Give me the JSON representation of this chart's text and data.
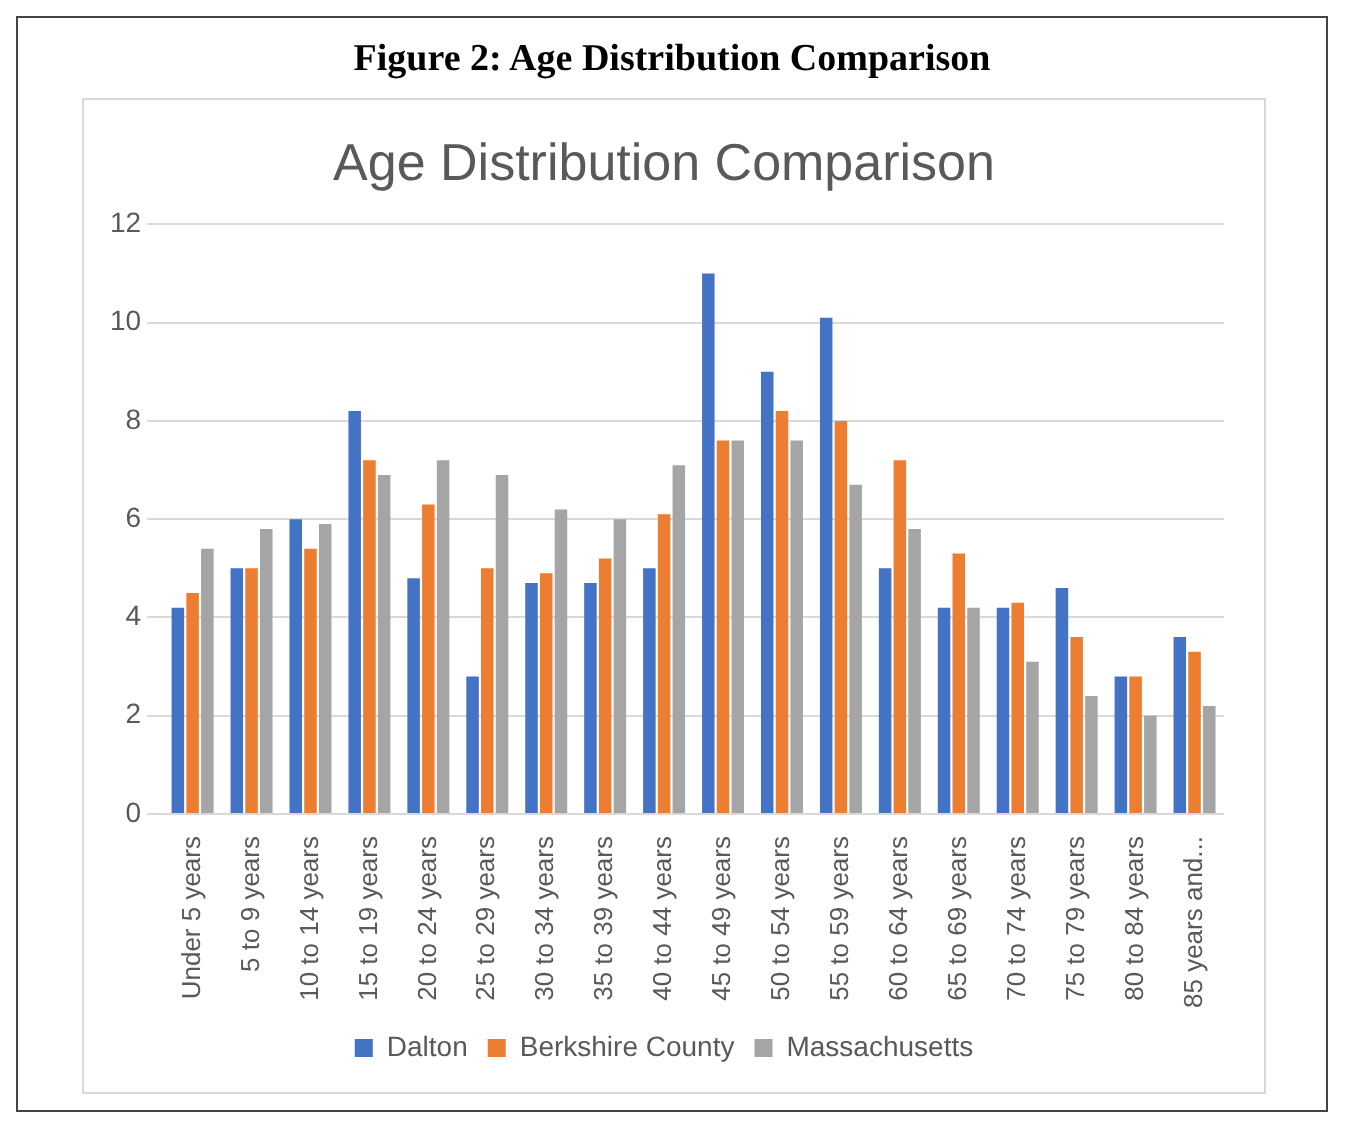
{
  "chart_data": {
    "type": "bar",
    "title": "Age Distribution Comparison",
    "annotations": [
      "Figure 2: Age Distribution Comparison"
    ],
    "categories": [
      "Under 5 years",
      "5 to 9 years",
      "10 to 14 years",
      "15 to 19 years",
      "20 to 24 years",
      "25 to 29 years",
      "30 to 34 years",
      "35 to 39 years",
      "40 to 44 years",
      "45 to 49 years",
      "50 to 54 years",
      "55 to 59 years",
      "60 to 64 years",
      "65 to 69 years",
      "70 to 74 years",
      "75 to 79 years",
      "80 to 84 years",
      "85 years and..."
    ],
    "series": [
      {
        "name": "Dalton",
        "color": "#4472c4",
        "values": [
          4.2,
          5.0,
          6.0,
          8.2,
          4.8,
          2.8,
          4.7,
          4.7,
          5.0,
          11.0,
          9.0,
          10.1,
          5.0,
          4.2,
          4.2,
          4.6,
          2.8,
          3.6
        ]
      },
      {
        "name": "Berkshire County",
        "color": "#ed7d31",
        "values": [
          4.5,
          5.0,
          5.4,
          7.2,
          6.3,
          5.0,
          4.9,
          5.2,
          6.1,
          7.6,
          8.2,
          8.0,
          7.2,
          5.3,
          4.3,
          3.6,
          2.8,
          3.3
        ]
      },
      {
        "name": "Massachusetts",
        "color": "#a5a5a5",
        "values": [
          5.4,
          5.8,
          5.9,
          6.9,
          7.2,
          6.9,
          6.2,
          6.0,
          7.1,
          7.6,
          7.6,
          6.7,
          5.8,
          4.2,
          3.1,
          2.4,
          2.0,
          2.2
        ]
      }
    ],
    "ylim": [
      0,
      12
    ],
    "yticks": [
      0,
      2,
      4,
      6,
      8,
      10,
      12
    ],
    "grid": "y",
    "legend": "bottom"
  }
}
